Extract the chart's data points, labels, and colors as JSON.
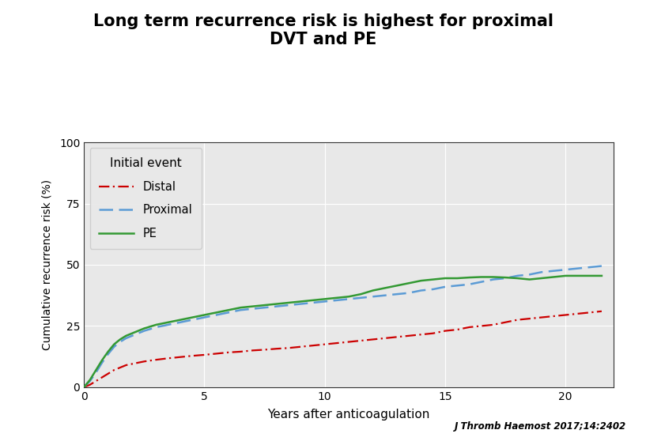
{
  "title_line1": "Long term recurrence risk is highest for proximal",
  "title_line2": "DVT and PE",
  "xlabel_text": "Years after anticoagulation",
  "ylabel_text": "Cumulative recurrence risk (%)",
  "xlim": [
    0,
    22
  ],
  "ylim": [
    0,
    100
  ],
  "xticks": [
    0,
    5,
    10,
    15,
    20
  ],
  "yticks": [
    0,
    25,
    50,
    75,
    100
  ],
  "legend_title": "Initial event",
  "citation": "J Thromb Haemost 2017;14:2402",
  "background_color": "#ffffff",
  "plot_bg_color": "#e8e8e8",
  "grid_color": "#ffffff",
  "distal_color": "#cc0000",
  "proximal_color": "#5b9bd5",
  "pe_color": "#339933",
  "distal_x": [
    0,
    0.25,
    0.5,
    0.75,
    1.0,
    1.25,
    1.5,
    1.75,
    2.0,
    2.5,
    3.0,
    3.5,
    4.0,
    4.5,
    5.0,
    5.5,
    6.0,
    6.5,
    7.0,
    7.5,
    8.0,
    8.5,
    9.0,
    9.5,
    10.0,
    10.5,
    11.0,
    11.5,
    12.0,
    12.5,
    13.0,
    13.5,
    14.0,
    14.5,
    15.0,
    15.5,
    16.0,
    16.5,
    17.0,
    17.5,
    18.0,
    18.5,
    19.0,
    19.5,
    20.0,
    20.5,
    21.0,
    21.5
  ],
  "distal_y": [
    0,
    1.0,
    2.5,
    4.0,
    5.5,
    7.0,
    8.0,
    9.0,
    9.5,
    10.5,
    11.2,
    11.8,
    12.3,
    12.8,
    13.2,
    13.7,
    14.2,
    14.5,
    15.0,
    15.3,
    15.7,
    16.0,
    16.5,
    17.0,
    17.5,
    18.0,
    18.5,
    19.0,
    19.5,
    20.0,
    20.5,
    21.0,
    21.5,
    22.0,
    23.0,
    23.5,
    24.5,
    25.0,
    25.5,
    26.5,
    27.5,
    28.0,
    28.5,
    29.0,
    29.5,
    30.0,
    30.5,
    31.0
  ],
  "proximal_x": [
    0,
    0.25,
    0.5,
    0.75,
    1.0,
    1.25,
    1.5,
    1.75,
    2.0,
    2.5,
    3.0,
    3.5,
    4.0,
    4.5,
    5.0,
    5.5,
    6.0,
    6.5,
    7.0,
    7.5,
    8.0,
    8.5,
    9.0,
    9.5,
    10.0,
    10.5,
    11.0,
    11.5,
    12.0,
    12.5,
    13.0,
    13.5,
    14.0,
    14.5,
    15.0,
    15.5,
    16.0,
    16.5,
    17.0,
    17.5,
    18.0,
    18.5,
    19.0,
    19.5,
    20.0,
    20.5,
    21.0,
    21.5
  ],
  "proximal_y": [
    0,
    2.5,
    6.0,
    10.0,
    13.5,
    16.5,
    18.5,
    20.0,
    21.0,
    23.0,
    24.5,
    25.5,
    26.5,
    27.5,
    28.5,
    29.5,
    30.5,
    31.5,
    32.0,
    32.5,
    33.0,
    33.5,
    34.0,
    34.5,
    35.0,
    35.5,
    36.0,
    36.5,
    37.0,
    37.5,
    38.0,
    38.5,
    39.5,
    40.0,
    41.0,
    41.5,
    42.0,
    43.0,
    44.0,
    44.5,
    45.5,
    46.0,
    47.0,
    47.5,
    48.0,
    48.5,
    49.0,
    49.5
  ],
  "pe_x": [
    0,
    0.25,
    0.5,
    0.75,
    1.0,
    1.25,
    1.5,
    1.75,
    2.0,
    2.5,
    3.0,
    3.5,
    4.0,
    4.5,
    5.0,
    5.5,
    6.0,
    6.5,
    7.0,
    7.5,
    8.0,
    8.5,
    9.0,
    9.5,
    10.0,
    10.5,
    11.0,
    11.5,
    12.0,
    12.5,
    13.0,
    13.5,
    14.0,
    14.5,
    15.0,
    15.5,
    16.0,
    16.5,
    17.0,
    17.5,
    18.0,
    18.5,
    19.0,
    19.5,
    20.0,
    20.5,
    21.0,
    21.5
  ],
  "pe_y": [
    0,
    3.0,
    7.0,
    11.0,
    14.5,
    17.5,
    19.5,
    21.0,
    22.0,
    24.0,
    25.5,
    26.5,
    27.5,
    28.5,
    29.5,
    30.5,
    31.5,
    32.5,
    33.0,
    33.5,
    34.0,
    34.5,
    35.0,
    35.5,
    36.0,
    36.5,
    37.0,
    38.0,
    39.5,
    40.5,
    41.5,
    42.5,
    43.5,
    44.0,
    44.5,
    44.5,
    44.8,
    45.0,
    45.0,
    44.8,
    44.5,
    44.0,
    44.5,
    45.0,
    45.5,
    45.5,
    45.5,
    45.5
  ]
}
